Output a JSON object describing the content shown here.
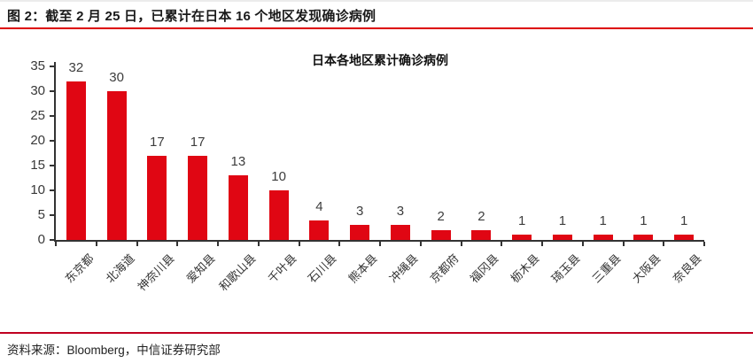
{
  "figure": {
    "caption": "图 2：截至 2 月 25 日，已累计在日本 16 个地区发现确诊病例",
    "source": "资料来源：Bloomberg，中信证券研究部"
  },
  "chart_data": {
    "type": "bar",
    "title": "日本各地区累计确诊病例",
    "categories": [
      "东京都",
      "北海道",
      "神奈川县",
      "爱知县",
      "和歌山县",
      "千叶县",
      "石川县",
      "熊本县",
      "冲绳县",
      "京都府",
      "福冈县",
      "枥木县",
      "琦玉县",
      "三重县",
      "大阪县",
      "奈良县"
    ],
    "values": [
      32,
      30,
      17,
      17,
      13,
      10,
      4,
      3,
      3,
      2,
      2,
      1,
      1,
      1,
      1,
      1
    ],
    "xlabel": "",
    "ylabel": "",
    "ylim": [
      0,
      35
    ],
    "yticks": [
      0,
      5,
      10,
      15,
      20,
      25,
      30,
      35
    ],
    "grid": false,
    "legend": false,
    "value_labels": true,
    "bar_color": "#e00613"
  },
  "colors": {
    "bar": "#e00613",
    "caption_rule": "#dd0000",
    "source_rule": "#c00020",
    "axis": "#333333",
    "label_text": "#3d3d3d"
  }
}
